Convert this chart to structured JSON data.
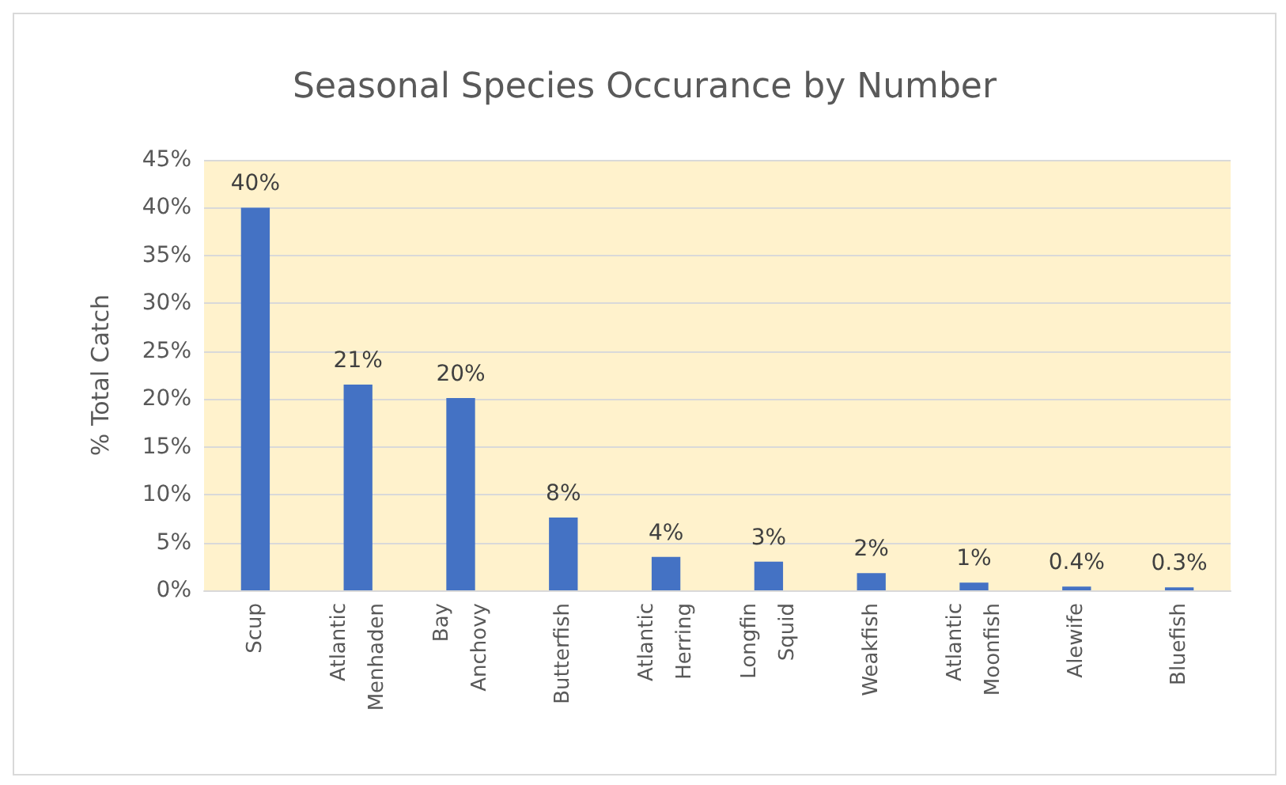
{
  "chart_data": {
    "type": "bar",
    "title": "Seasonal Species Occurance by Number",
    "ylabel": "% Total Catch",
    "categories": [
      "Scup",
      "Atlantic Menhaden",
      "Bay Anchovy",
      "Butterfish",
      "Atlantic Herring",
      "Longfin Squid",
      "Weakfish",
      "Atlantic Moonfish",
      "Alewife",
      "Bluefish"
    ],
    "values": [
      40,
      21.5,
      20.1,
      7.6,
      3.5,
      3.0,
      1.8,
      0.8,
      0.4,
      0.3
    ],
    "value_labels": [
      "40%",
      "21%",
      "20%",
      "8%",
      "4%",
      "3%",
      "2%",
      "1%",
      "0.4%",
      "0.3%"
    ],
    "color": "#4472c4",
    "ylim": [
      0,
      45
    ],
    "yticks": [
      {
        "value": 0,
        "label": "0%"
      },
      {
        "value": 5,
        "label": "5%"
      },
      {
        "value": 10,
        "label": "10%"
      },
      {
        "value": 15,
        "label": "15%"
      },
      {
        "value": 20,
        "label": "20%"
      },
      {
        "value": 25,
        "label": "25%"
      },
      {
        "value": 30,
        "label": "30%"
      },
      {
        "value": 35,
        "label": "35%"
      },
      {
        "value": 40,
        "label": "40%"
      },
      {
        "value": 45,
        "label": "45%"
      }
    ],
    "grid": "y"
  }
}
